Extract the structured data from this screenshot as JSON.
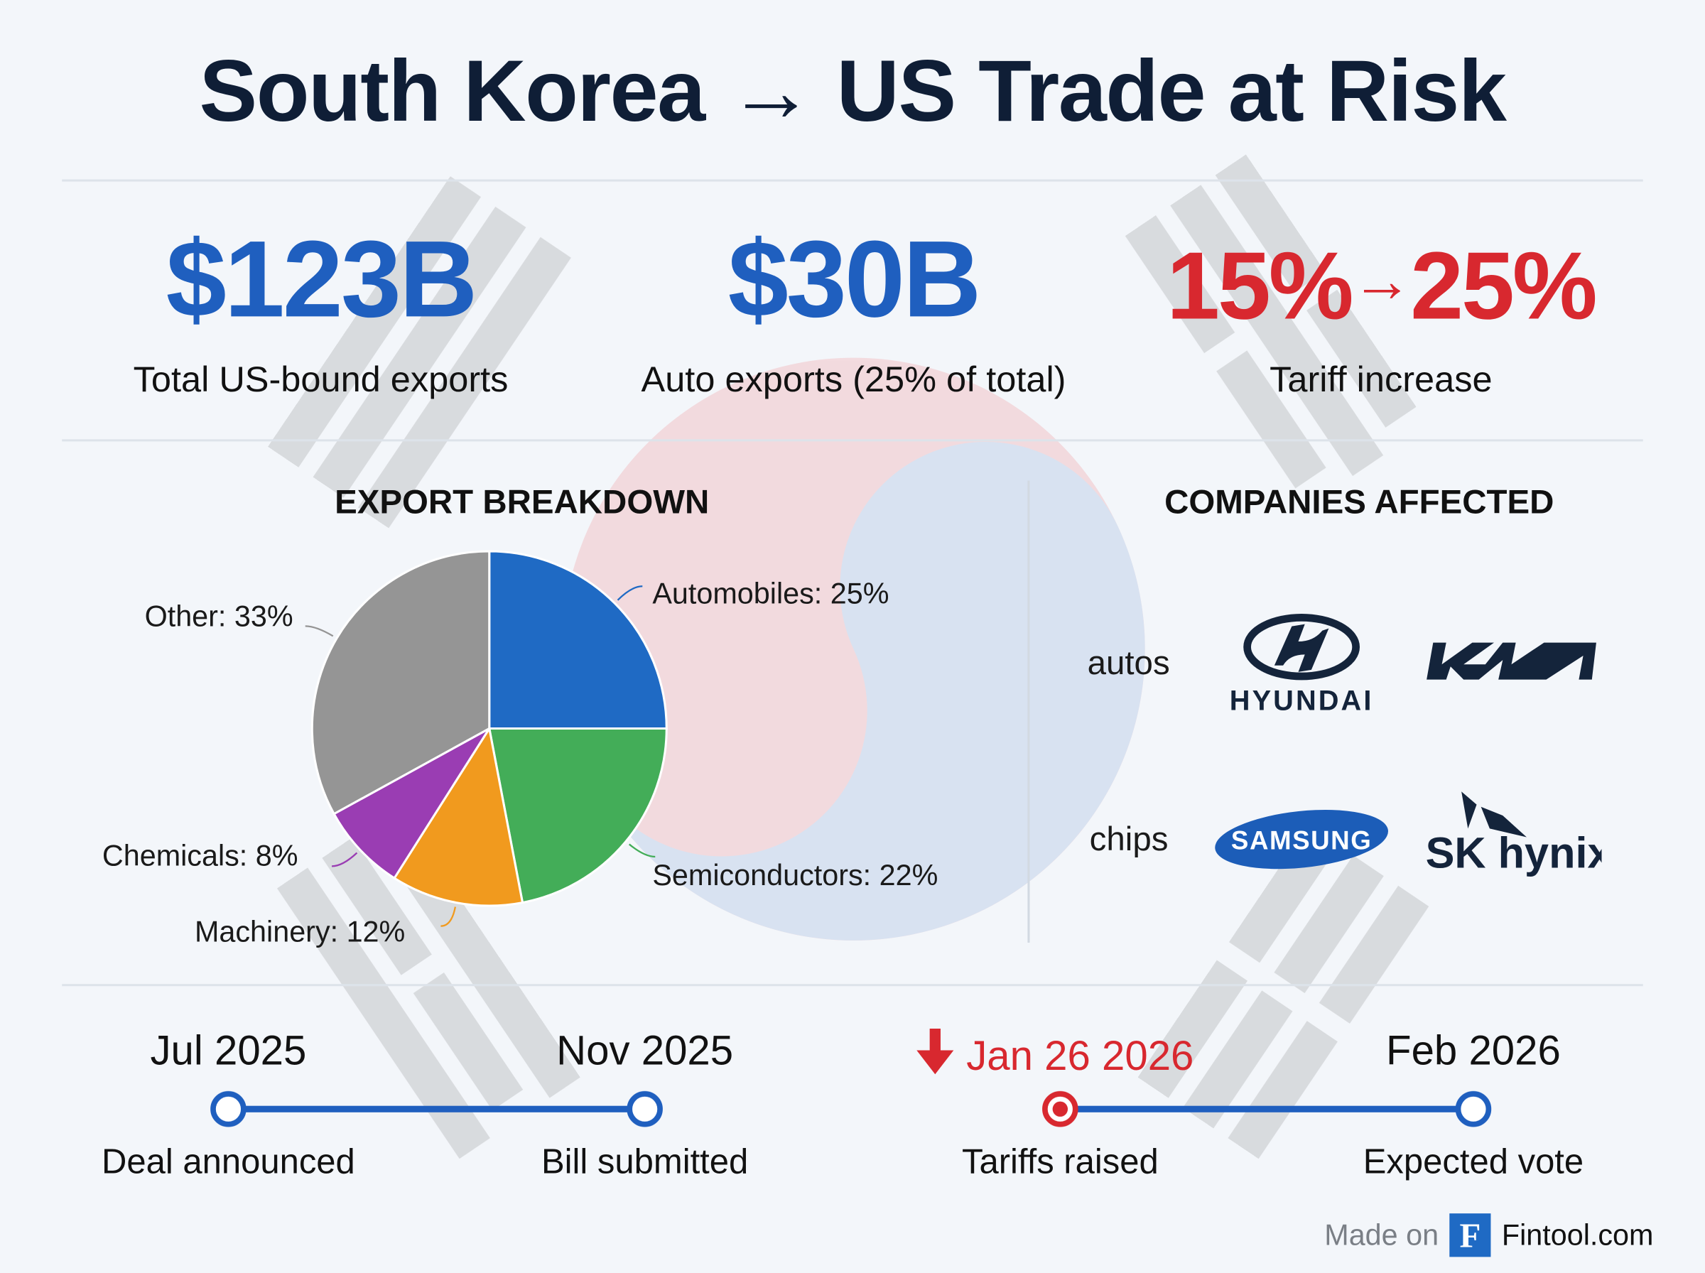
{
  "title": "South Korea → US Trade at Risk",
  "kpis": [
    {
      "value": "$123B",
      "label": "Total US-bound exports",
      "color": "#1f5fbf"
    },
    {
      "value": "$30B",
      "label": "Auto exports (25% of total)",
      "color": "#1f5fbf"
    },
    {
      "value_from": "15%",
      "arrow": "→",
      "value_to": "25%",
      "label": "Tariff increase",
      "color": "#d8282f"
    }
  ],
  "export_breakdown": {
    "heading": "EXPORT BREAKDOWN"
  },
  "chart_data": {
    "type": "pie",
    "title": "EXPORT BREAKDOWN",
    "slices": [
      {
        "label": "Automobiles: 25%",
        "name": "Automobiles",
        "value": 25,
        "color": "#1f6ac4"
      },
      {
        "label": "Semiconductors: 22%",
        "name": "Semiconductors",
        "value": 22,
        "color": "#43ad58"
      },
      {
        "label": "Machinery: 12%",
        "name": "Machinery",
        "value": 12,
        "color": "#f19a1e"
      },
      {
        "label": "Chemicals: 8%",
        "name": "Chemicals",
        "value": 8,
        "color": "#9a3db3"
      },
      {
        "label": "Other: 33%",
        "name": "Other",
        "value": 33,
        "color": "#959595"
      }
    ],
    "start": "top",
    "direction": "clockwise"
  },
  "companies": {
    "heading": "COMPANIES AFFECTED",
    "groups": [
      {
        "category": "autos",
        "logos": [
          "HYUNDAI",
          "KIA"
        ]
      },
      {
        "category": "chips",
        "logos": [
          "SAMSUNG",
          "SK hynix"
        ]
      }
    ]
  },
  "timeline": [
    {
      "date": "Jul 2025",
      "label": "Deal announced",
      "highlight": false
    },
    {
      "date": "Nov 2025",
      "label": "Bill submitted",
      "highlight": false
    },
    {
      "date": "Jan 26 2026",
      "label": "Tariffs raised",
      "highlight": true,
      "icon": "arrow-down-icon"
    },
    {
      "date": "Feb 2026",
      "label": "Expected vote",
      "highlight": false
    }
  ],
  "footer": {
    "made_on": "Made on",
    "logo_letter": "F",
    "brand": "Fintool.com"
  },
  "colors": {
    "blue": "#1f5fbf",
    "red": "#d8282f",
    "navy": "#0f1e36"
  }
}
